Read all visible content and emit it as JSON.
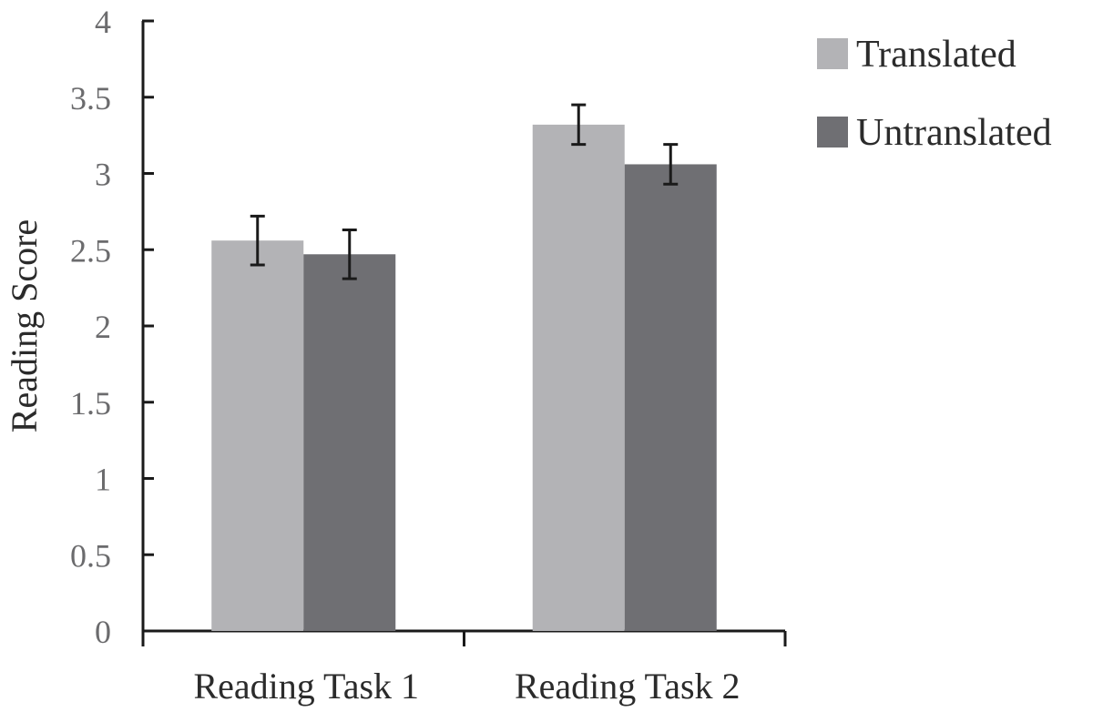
{
  "chart_data": {
    "type": "bar",
    "title": "",
    "xlabel": "",
    "ylabel": "Reading Score",
    "ylim": [
      0,
      4
    ],
    "yticks": [
      0,
      0.5,
      1,
      1.5,
      2,
      2.5,
      3,
      3.5,
      4
    ],
    "ytick_labels": [
      "0",
      "0.5",
      "1",
      "1.5",
      "2",
      "2.5",
      "3",
      "3.5",
      "4"
    ],
    "grid": false,
    "legend_position": "top-right",
    "categories": [
      "Reading Task 1",
      "Reading Task 2"
    ],
    "series": [
      {
        "name": "Translated",
        "color": "#b3b3b6",
        "values": [
          2.56,
          3.32
        ],
        "errors": [
          0.16,
          0.13
        ]
      },
      {
        "name": "Untranslated",
        "color": "#6f6f73",
        "values": [
          2.47,
          3.06
        ],
        "errors": [
          0.16,
          0.13
        ]
      }
    ],
    "axis_color": "#1a1a1a",
    "errorbar_color": "#1a1a1a"
  }
}
